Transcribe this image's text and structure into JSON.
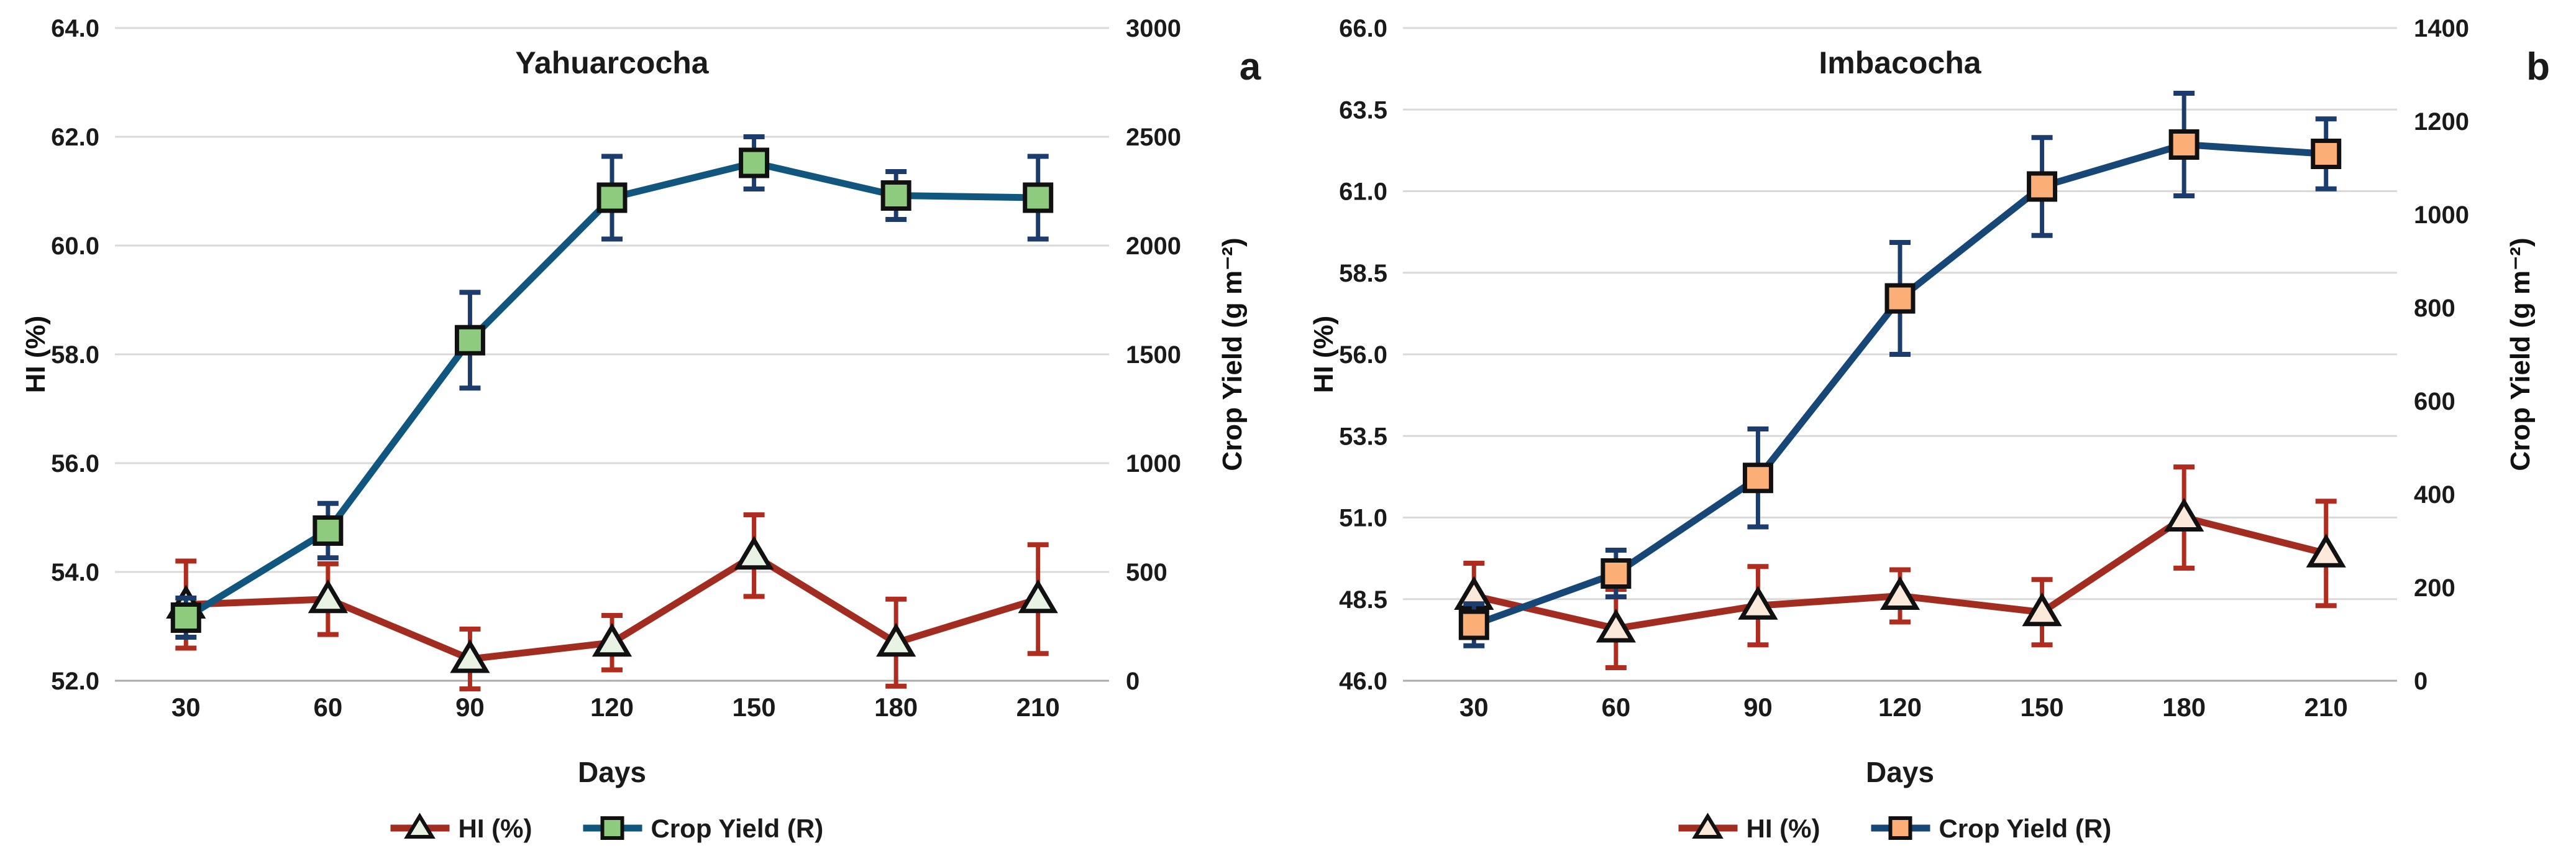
{
  "page": {
    "background": "#FFFFFF",
    "gridline_color": "#D9D9D9",
    "axis_line_color": "#ABABAB",
    "text_color": "#1A1A1A"
  },
  "chart_data": [
    {
      "type": "line",
      "panel_label": "a",
      "title": "Yahuarcocha",
      "xlabel": "Days",
      "categories": [
        30,
        60,
        90,
        120,
        150,
        180,
        210
      ],
      "x_tick_labels": [
        "30",
        "60",
        "90",
        "120",
        "150",
        "180",
        "210"
      ],
      "grid": true,
      "legend_position": "bottom",
      "left_axis": {
        "title": "HI (%)",
        "min": 52.0,
        "max": 64.0,
        "step": 2.0,
        "ticks": [
          64.0,
          62.0,
          60.0,
          58.0,
          56.0,
          54.0,
          52.0
        ],
        "tick_labels": [
          "64.0",
          "62.0",
          "60.0",
          "58.0",
          "56.0",
          "54.0",
          "52.0"
        ]
      },
      "right_axis": {
        "title": "Crop Yield (g m⁻²)",
        "min": 0,
        "max": 3000,
        "step": 500,
        "ticks": [
          3000,
          2500,
          2000,
          1500,
          1000,
          500,
          0
        ],
        "tick_labels": [
          "3000",
          "2500",
          "2000",
          "1500",
          "1000",
          "500",
          "0"
        ]
      },
      "series": [
        {
          "name": "HI (%)",
          "axis": "left",
          "marker": "triangle",
          "line_color": "#A32C20",
          "error_color": "#B02C1F",
          "marker_fill": "#E9F3E4",
          "marker_stroke": "#111111",
          "values": [
            53.4,
            53.5,
            52.4,
            52.7,
            54.3,
            52.7,
            53.5
          ],
          "errors": [
            0.8,
            0.65,
            0.55,
            0.5,
            0.75,
            0.8,
            1.0
          ]
        },
        {
          "name": "Crop Yield (R)",
          "axis": "right",
          "marker": "square",
          "line_color": "#11567F",
          "error_color": "#1B3C6D",
          "marker_fill": "#8FCB7F",
          "marker_stroke": "#111111",
          "values": [
            290,
            690,
            1565,
            2220,
            2380,
            2230,
            2220
          ],
          "errors": [
            90,
            125,
            220,
            190,
            120,
            110,
            190
          ]
        }
      ]
    },
    {
      "type": "line",
      "panel_label": "b",
      "title": "Imbacocha",
      "xlabel": "Days",
      "categories": [
        30,
        60,
        90,
        120,
        150,
        180,
        210
      ],
      "x_tick_labels": [
        "30",
        "60",
        "90",
        "120",
        "150",
        "180",
        "210"
      ],
      "grid": true,
      "legend_position": "bottom",
      "left_axis": {
        "title": "HI (%)",
        "min": 46.0,
        "max": 66.0,
        "step": 2.5,
        "ticks": [
          66.0,
          63.5,
          61.0,
          58.5,
          56.0,
          53.5,
          51.0,
          48.5,
          46.0
        ],
        "tick_labels": [
          "66.0",
          "63.5",
          "61.0",
          "58.5",
          "56.0",
          "53.5",
          "51.0",
          "48.5",
          "46.0"
        ]
      },
      "right_axis": {
        "title": "Crop Yield (g m⁻²)",
        "min": 0,
        "max": 1400,
        "step": 200,
        "ticks": [
          1400,
          1200,
          1000,
          800,
          600,
          400,
          200,
          0
        ],
        "tick_labels": [
          "1400",
          "1200",
          "1000",
          "800",
          "600",
          "400",
          "200",
          "0"
        ]
      },
      "series": [
        {
          "name": "HI (%)",
          "axis": "left",
          "marker": "triangle",
          "line_color": "#A32C20",
          "error_color": "#B02C1F",
          "marker_fill": "#FCE9DA",
          "marker_stroke": "#111111",
          "values": [
            48.6,
            47.6,
            48.3,
            48.6,
            48.1,
            51.0,
            49.9
          ],
          "errors": [
            1.0,
            1.2,
            1.2,
            0.8,
            1.0,
            1.55,
            1.6
          ]
        },
        {
          "name": "Crop Yield (R)",
          "axis": "right",
          "marker": "square",
          "line_color": "#174777",
          "error_color": "#1B3C6D",
          "marker_fill": "#FBAE75",
          "marker_stroke": "#111111",
          "values": [
            120,
            230,
            435,
            820,
            1060,
            1150,
            1130
          ],
          "errors": [
            45,
            50,
            105,
            120,
            105,
            110,
            75
          ]
        }
      ]
    }
  ]
}
